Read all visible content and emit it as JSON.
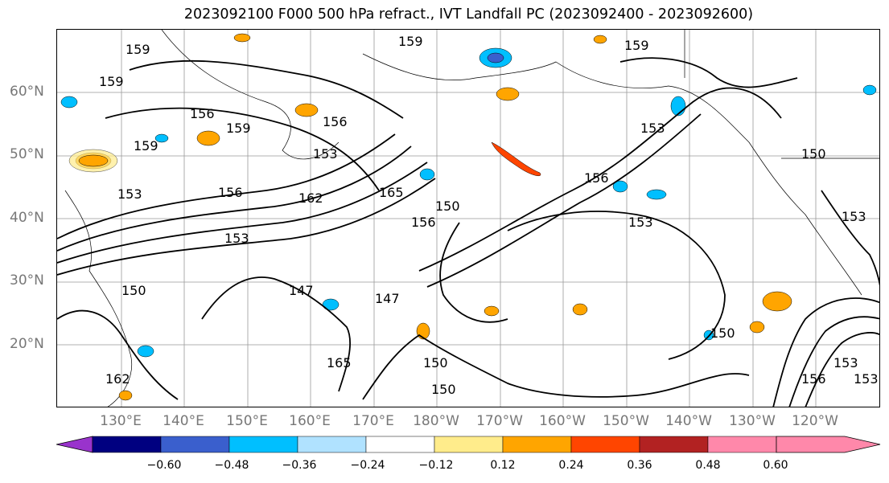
{
  "title": "2023092100 F000 500 hPa refract., IVT Landfall PC (2023092400 - 2023092600)",
  "lat_labels": [
    "60°N",
    "50°N",
    "40°N",
    "30°N",
    "20°N"
  ],
  "lon_labels": [
    "130°E",
    "140°E",
    "150°E",
    "160°E",
    "170°E",
    "180°W",
    "170°W",
    "160°W",
    "150°W",
    "140°W",
    "130°W",
    "120°W"
  ],
  "contour_labels": [
    "159",
    "159",
    "159",
    "159",
    "156",
    "159",
    "156",
    "159",
    "153",
    "153",
    "153",
    "153",
    "156",
    "165",
    "162",
    "150",
    "156",
    "153",
    "147",
    "147",
    "150",
    "156",
    "165",
    "150",
    "150",
    "150",
    "150",
    "153",
    "156",
    "153",
    "153",
    "162"
  ],
  "colorbar": {
    "ticks": [
      "−0.60",
      "−0.48",
      "−0.36",
      "−0.24",
      "−0.12",
      "0.12",
      "0.24",
      "0.36",
      "0.48",
      "0.60"
    ],
    "colors": [
      "#9933cc",
      "#000080",
      "#3a5fcd",
      "#00bfff",
      "#b0e2ff",
      "#ffffff",
      "#ffec8b",
      "#ffa500",
      "#ff4500",
      "#b22222",
      "#ff88aa"
    ]
  },
  "icons": [
    "colorbar-left-arrow",
    "colorbar-right-arrow"
  ]
}
